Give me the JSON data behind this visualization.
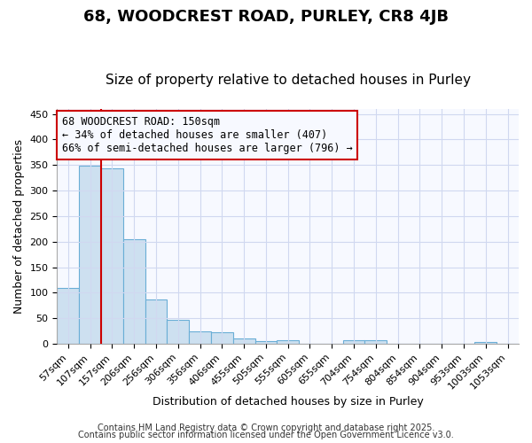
{
  "title": "68, WOODCREST ROAD, PURLEY, CR8 4JB",
  "subtitle": "Size of property relative to detached houses in Purley",
  "xlabel": "Distribution of detached houses by size in Purley",
  "ylabel": "Number of detached properties",
  "bar_labels": [
    "57sqm",
    "107sqm",
    "157sqm",
    "206sqm",
    "256sqm",
    "306sqm",
    "356sqm",
    "406sqm",
    "455sqm",
    "505sqm",
    "555sqm",
    "605sqm",
    "655sqm",
    "704sqm",
    "754sqm",
    "804sqm",
    "854sqm",
    "904sqm",
    "953sqm",
    "1003sqm",
    "1053sqm"
  ],
  "bar_values": [
    110,
    348,
    344,
    204,
    86,
    47,
    25,
    22,
    10,
    6,
    7,
    0,
    0,
    7,
    7,
    0,
    0,
    0,
    0,
    3,
    0
  ],
  "bar_color": "#cde0f0",
  "bar_edge_color": "#6aaed6",
  "ylim": [
    0,
    460
  ],
  "yticks": [
    0,
    50,
    100,
    150,
    200,
    250,
    300,
    350,
    400,
    450
  ],
  "vline_index": 2,
  "vline_color": "#cc0000",
  "annotation_line1": "68 WOODCREST ROAD: 150sqm",
  "annotation_line2": "← 34% of detached houses are smaller (407)",
  "annotation_line3": "66% of semi-detached houses are larger (796) →",
  "box_color": "#cc0000",
  "footer1": "Contains HM Land Registry data © Crown copyright and database right 2025.",
  "footer2": "Contains public sector information licensed under the Open Government Licence v3.0.",
  "background_color": "#ffffff",
  "plot_bg_color": "#f7f9ff",
  "grid_color": "#d0d8f0",
  "title_fontsize": 13,
  "subtitle_fontsize": 11,
  "axis_label_fontsize": 9,
  "tick_fontsize": 8,
  "annotation_fontsize": 8.5,
  "footer_fontsize": 7
}
